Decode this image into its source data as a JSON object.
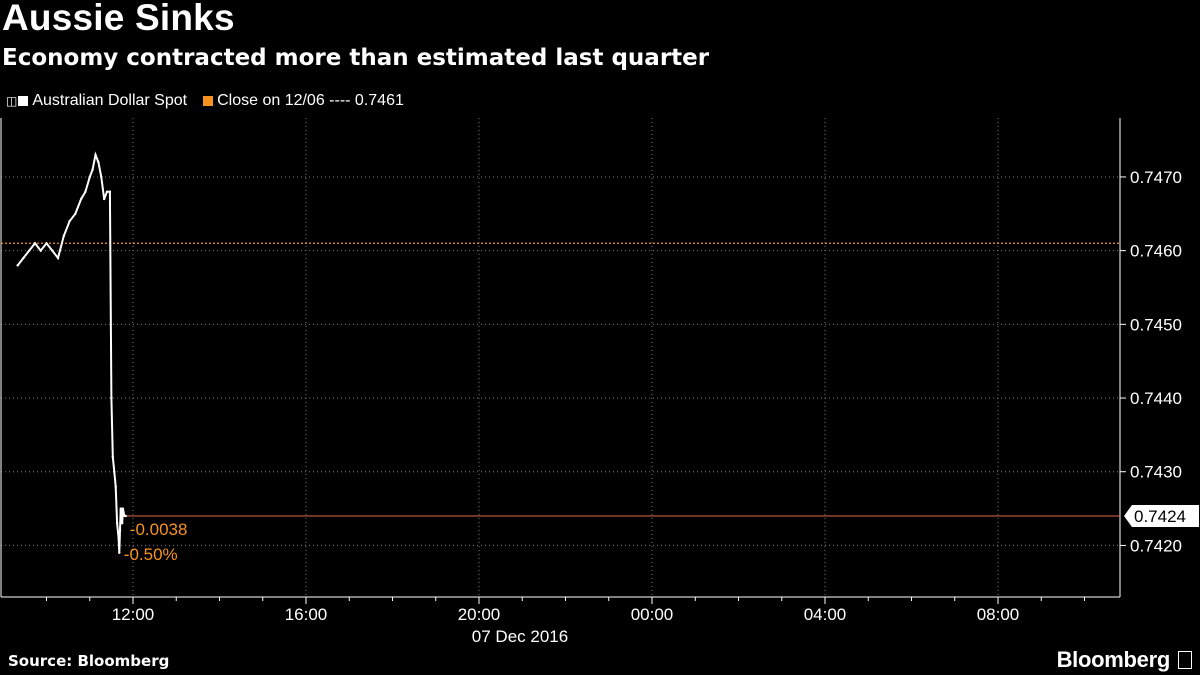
{
  "header": {
    "title": "Aussie Sinks",
    "subtitle": "Economy contracted more than estimated last quarter"
  },
  "legend": {
    "series_label": "Australian Dollar Spot",
    "series_color": "#ffffff",
    "reference_label": "Close on 12/06 ---- 0.7461",
    "reference_color": "#f7921e"
  },
  "footer": {
    "source": "Source: Bloomberg",
    "brand": "Bloomberg"
  },
  "chart_data": {
    "type": "line",
    "x_tick_labels": [
      "12:00",
      "16:00",
      "20:00",
      "00:00",
      "04:00",
      "08:00"
    ],
    "x_date_label": "07 Dec 2016",
    "y_ticks": [
      "0.7470",
      "0.7460",
      "0.7450",
      "0.7440",
      "0.7430",
      "0.7420"
    ],
    "ylim": [
      0.7413,
      0.7478
    ],
    "grid": true,
    "reference_line": {
      "name": "Close on 12/06",
      "value": 0.7461,
      "color": "#f7921e"
    },
    "last_value": {
      "value": 0.7424,
      "label": "0.7424",
      "line_color": "#e06a48"
    },
    "change_labels": {
      "abs": "-0.0038",
      "pct": "-0.50%",
      "color": "#f7921e"
    },
    "series": [
      {
        "name": "Australian Dollar Spot",
        "x": [
          "09:20",
          "09:28",
          "09:36",
          "09:44",
          "09:52",
          "10:00",
          "10:08",
          "10:16",
          "10:24",
          "10:32",
          "10:40",
          "10:48",
          "10:54",
          "11:00",
          "11:04",
          "11:08",
          "11:12",
          "11:16",
          "11:20",
          "11:24",
          "11:28",
          "11:30",
          "11:32",
          "11:34",
          "11:36",
          "11:38",
          "11:40",
          "11:41",
          "11:42",
          "11:43",
          "11:44",
          "11:45",
          "11:46",
          "11:48",
          "11:50"
        ],
        "y": [
          0.7458,
          0.7459,
          0.746,
          0.7461,
          0.746,
          0.7461,
          0.746,
          0.7459,
          0.7462,
          0.7464,
          0.7465,
          0.7467,
          0.7468,
          0.747,
          0.7471,
          0.7473,
          0.7472,
          0.747,
          0.7467,
          0.7468,
          0.7468,
          0.744,
          0.7432,
          0.743,
          0.7428,
          0.7423,
          0.7421,
          0.7419,
          0.7422,
          0.7425,
          0.7424,
          0.7423,
          0.7425,
          0.7424,
          0.7424
        ]
      }
    ]
  }
}
